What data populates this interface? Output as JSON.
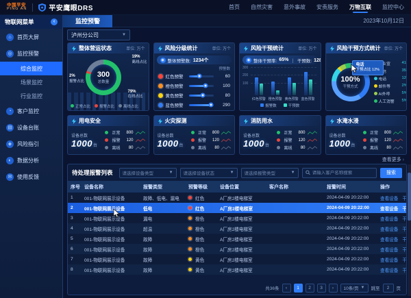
{
  "header": {
    "logo_top": "中国平安",
    "logo_bottom": "PING AN",
    "app_name": "平安鹰眼DRS",
    "nav": [
      {
        "label": "首页",
        "active": false
      },
      {
        "label": "自然灾害",
        "active": false
      },
      {
        "label": "意外事故",
        "active": false
      },
      {
        "label": "安责服务",
        "active": false
      },
      {
        "label": "万物互联",
        "active": true
      },
      {
        "label": "监控中心",
        "active": false
      }
    ]
  },
  "sidebar": {
    "title": "物联网菜单",
    "items": [
      {
        "label": "首页大屏",
        "icon": "home-icon",
        "children": []
      },
      {
        "label": "监控预警",
        "icon": "monitor-icon",
        "children": [
          {
            "label": "综合监控",
            "active": true
          },
          {
            "label": "场景监控",
            "active": false
          },
          {
            "label": "行业监控",
            "active": false
          }
        ]
      },
      {
        "label": "客户监控",
        "icon": "customer-icon",
        "children": []
      },
      {
        "label": "设备台账",
        "icon": "ledger-icon",
        "children": []
      },
      {
        "label": "风险指引",
        "icon": "risk-icon",
        "children": []
      },
      {
        "label": "数据分析",
        "icon": "analytics-icon",
        "children": []
      },
      {
        "label": "使用反馈",
        "icon": "feedback-icon",
        "children": []
      }
    ]
  },
  "toolbar": {
    "tab": "监控预警",
    "date": "2023年10月12日",
    "branch": "泸州分公司"
  },
  "cards": {
    "overall": {
      "title": "整体营运状态",
      "unit": "单位: 万个",
      "center_value": "300",
      "center_label": "总数量",
      "chart_data": {
        "type": "pie",
        "segments": [
          {
            "label": "正常占比",
            "pct": 79,
            "color": "#23c16b"
          },
          {
            "label": "报警占比",
            "pct": 2,
            "color": "#e8453c"
          },
          {
            "label": "离线占比",
            "pct": 19,
            "color": "#6e7f99"
          }
        ]
      },
      "callout_offline": {
        "pct": "19%",
        "label": "离线占比"
      },
      "callout_alarm": {
        "pct": "2%",
        "label": "报警占比"
      },
      "callout_online": {
        "pct": "79%",
        "label": "在线占比"
      }
    },
    "risk_level": {
      "title": "风险分级统计",
      "unit": "单位: 万个",
      "banner_label": "整体预警数:",
      "banner_value": "1234个",
      "col_label": "预警数",
      "rows": [
        {
          "label": "红色预警",
          "color": "#ff4438",
          "value": "60",
          "pct": 42
        },
        {
          "label": "橙色预警",
          "color": "#ff8f1f",
          "value": "100",
          "pct": 68
        },
        {
          "label": "黄色预警",
          "color": "#ffd30f",
          "value": "80",
          "pct": 55
        },
        {
          "label": "蓝色预警",
          "color": "#2f7cf6",
          "value": "290",
          "pct": 90
        }
      ]
    },
    "intervene": {
      "title": "风险干预统计",
      "unit": "单位: 万个",
      "banner_label1": "整体干预率:",
      "banner_value1": "65%",
      "banner_sep": "｜",
      "banner_label2": "干预数:",
      "banner_value2": "1284个",
      "chart_data": {
        "type": "bar",
        "categories": [
          "红色预警",
          "橙色预警",
          "黄色预警",
          "蓝色预警"
        ],
        "y_ticks": [
          "300",
          "200",
          "100"
        ],
        "y_max": 300,
        "series": [
          {
            "name": "报警数",
            "color": "#2f7cf6",
            "values": [
              230,
              180,
              230,
              300
            ]
          },
          {
            "name": "干预数",
            "color": "#35e0c8",
            "values": [
              150,
              60,
              160,
              200
            ]
          }
        ]
      }
    },
    "intervene_mode": {
      "title": "风险干预方式统计",
      "unit": "单位: 万个",
      "center_value": "100%",
      "center_label": "干预方式",
      "tooltip_title": "电话",
      "tooltip_text": "干预占比 12%",
      "chart_data": {
        "type": "pie",
        "segments": [
          {
            "label": "企业宣",
            "value": "41%",
            "pct": 41,
            "color": "#2f7cf6"
          },
          {
            "label": "短信",
            "value": "35%",
            "pct": 35,
            "color": "#5aa0ff"
          },
          {
            "label": "电话",
            "value": "12%",
            "pct": 12,
            "color": "#35d6e8"
          },
          {
            "label": "邮件等",
            "value": "2%",
            "pct": 2,
            "color": "#f5d314"
          },
          {
            "label": "AI外呼",
            "value": "5%",
            "pct": 5,
            "color": "#9ccc4f"
          },
          {
            "label": "人工消警",
            "value": "5%",
            "pct": 5,
            "color": "#27c06d"
          }
        ]
      }
    }
  },
  "device_cards": [
    {
      "title": "用电安全",
      "total_label": "设备总数",
      "total": "1000",
      "unit": "台",
      "stats": [
        {
          "label": "正常",
          "value": "800",
          "color": "#23c16b"
        },
        {
          "label": "报警",
          "value": "120",
          "color": "#e8453c"
        },
        {
          "label": "离线",
          "value": "80",
          "color": "#6e7f99"
        }
      ]
    },
    {
      "title": "火灾探测",
      "total_label": "设备总数",
      "total": "1000",
      "unit": "台",
      "stats": [
        {
          "label": "正常",
          "value": "800",
          "color": "#23c16b"
        },
        {
          "label": "报警",
          "value": "120",
          "color": "#e8453c"
        },
        {
          "label": "离线",
          "value": "80",
          "color": "#6e7f99"
        }
      ]
    },
    {
      "title": "消防用水",
      "total_label": "设备总数",
      "total": "1000",
      "unit": "台",
      "stats": [
        {
          "label": "正常",
          "value": "800",
          "color": "#23c16b"
        },
        {
          "label": "报警",
          "value": "120",
          "color": "#e8453c"
        },
        {
          "label": "离线",
          "value": "80",
          "color": "#6e7f99"
        }
      ]
    },
    {
      "title": "水淹水浸",
      "total_label": "设备总数",
      "total": "1000",
      "unit": "台",
      "stats": [
        {
          "label": "正常",
          "value": "800",
          "color": "#23c16b"
        },
        {
          "label": "报警",
          "value": "120",
          "color": "#e8453c"
        },
        {
          "label": "离线",
          "value": "80",
          "color": "#6e7f99"
        }
      ]
    }
  ],
  "view_more": "查看更多",
  "table": {
    "title": "待处理报警列表",
    "filters": [
      {
        "placeholder": "请选择设备类型"
      },
      {
        "placeholder": "请选择设备状态"
      },
      {
        "placeholder": "请选择报警类型"
      }
    ],
    "search_placeholder": "请输入客户名称搜索",
    "search_button": "搜索",
    "columns": [
      "序号",
      "设备名称",
      "报警类型",
      "预警等级",
      "设备位置",
      "客户名称",
      "报警时间",
      "操作"
    ],
    "action_labels": [
      "查看设备",
      "干预"
    ],
    "rows": [
      {
        "no": "1",
        "device": "001-物联网展示设备",
        "type": "故障、低电、漏电",
        "level": "红色",
        "level_color": "#ff4438",
        "location": "A厂房2楼电梯室",
        "customer_redacted": true,
        "time": "2024-04-09 20:22:00",
        "highlight": false
      },
      {
        "no": "2",
        "device": "001-物联网展示设备",
        "type": "低电",
        "level": "红色",
        "level_color": "#ff4438",
        "location": "A厂房2楼电梯室",
        "customer_redacted": true,
        "time": "2024-04-09 20:22:00",
        "highlight": true
      },
      {
        "no": "3",
        "device": "001-物联网展示设备",
        "type": "漏电",
        "level": "橙色",
        "level_color": "#ff8f1f",
        "location": "A厂房2楼电梯室",
        "customer_redacted": true,
        "time": "2024-04-09 20:22:00",
        "highlight": false
      },
      {
        "no": "4",
        "device": "001-物联网展示设备",
        "type": "超温",
        "level": "橙色",
        "level_color": "#ff8f1f",
        "location": "A厂房2楼电梯室",
        "customer_redacted": true,
        "time": "2024-04-09 20:22:00",
        "highlight": false
      },
      {
        "no": "5",
        "device": "001-物联网展示设备",
        "type": "故障",
        "level": "橙色",
        "level_color": "#ff8f1f",
        "location": "A厂房2楼电梯室",
        "customer_redacted": true,
        "time": "2024-04-09 20:22:00",
        "highlight": false
      },
      {
        "no": "6",
        "device": "001-物联网展示设备",
        "type": "故障",
        "level": "橙色",
        "level_color": "#ff8f1f",
        "location": "A厂房2楼电梯室",
        "customer_redacted": true,
        "time": "2024-04-09 20:22:00",
        "highlight": false
      },
      {
        "no": "7",
        "device": "001-物联网展示设备",
        "type": "故障",
        "level": "黄色",
        "level_color": "#ffd30f",
        "location": "A厂房2楼电梯室",
        "customer_redacted": true,
        "time": "2024-04-09 20:22:00",
        "highlight": false
      },
      {
        "no": "8",
        "device": "001-物联网展示设备",
        "type": "故障",
        "level": "黄色",
        "level_color": "#ffd30f",
        "location": "A厂房2楼电梯室",
        "customer_redacted": true,
        "time": "2024-04-09 20:22:00",
        "highlight": false
      }
    ],
    "pagination": {
      "total": "共36条",
      "prev": "‹",
      "next": "›",
      "pages": [
        "1",
        "2",
        "3"
      ],
      "active_page": "1",
      "page_size": "10条/页",
      "jump_label": "跳至",
      "jump_value": "2",
      "jump_unit": "页"
    }
  }
}
